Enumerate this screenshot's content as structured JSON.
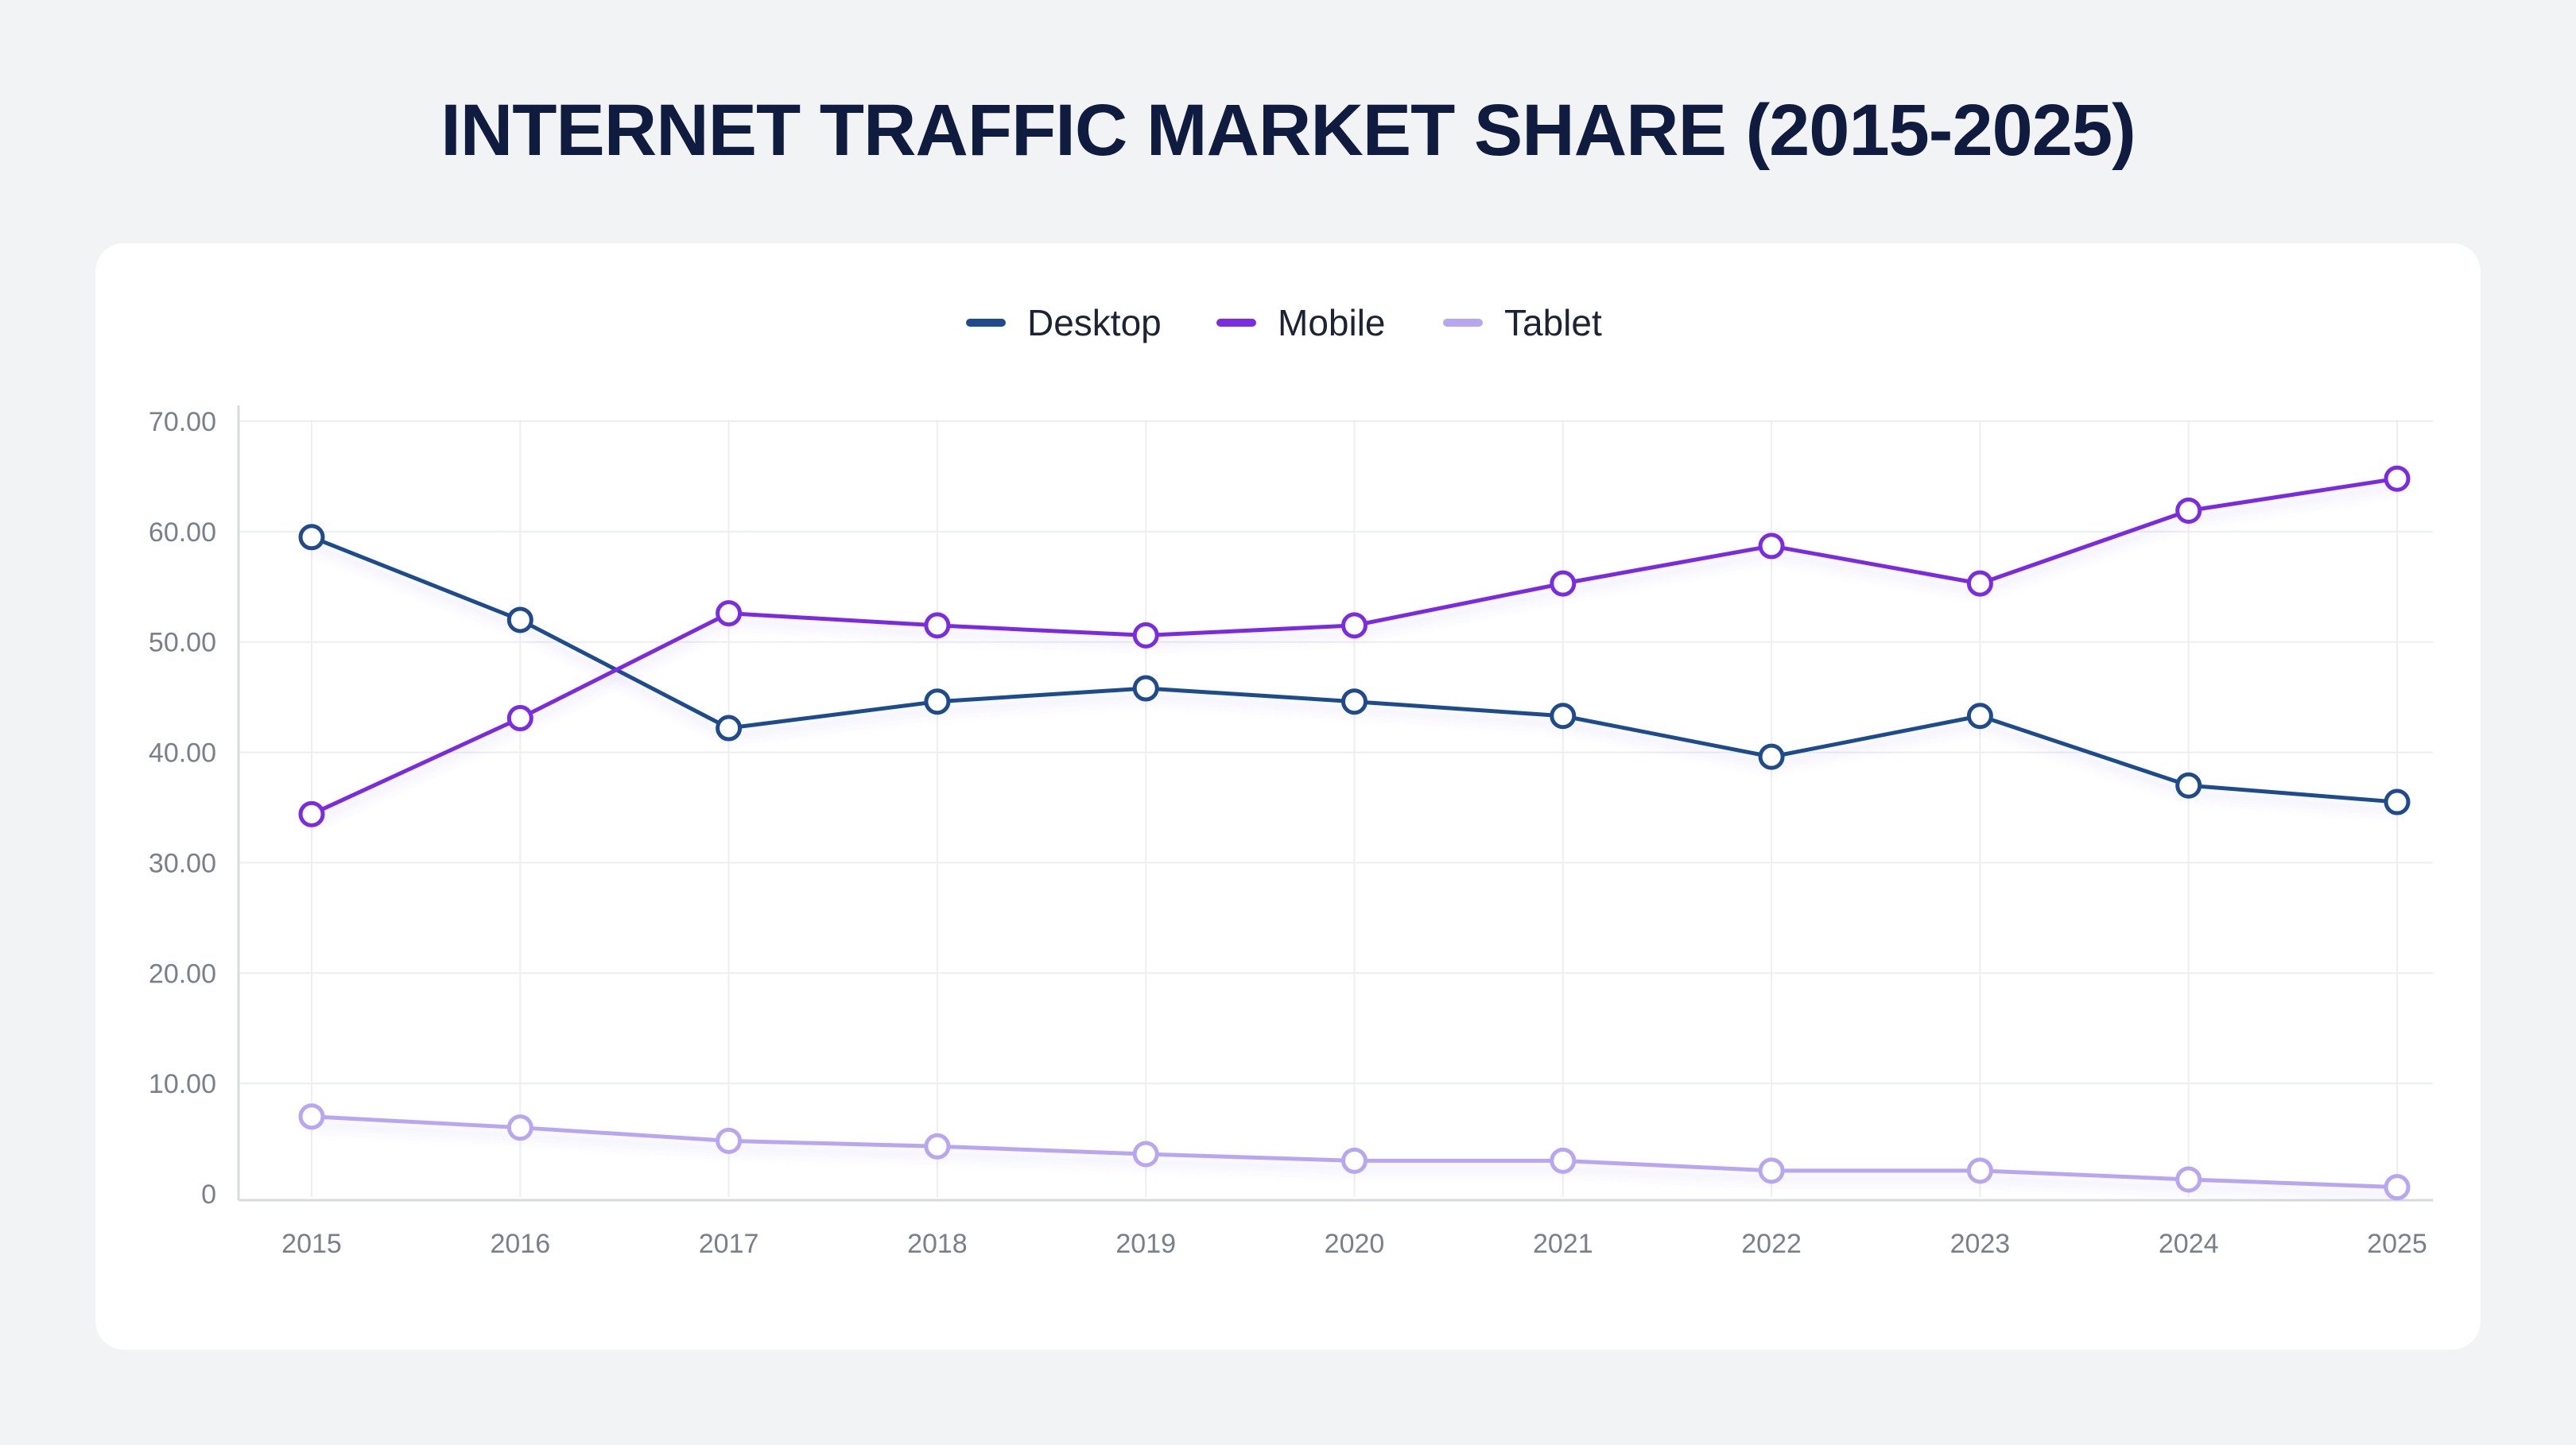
{
  "page": {
    "title": "INTERNET TRAFFIC MARKET SHARE (2015-2025)"
  },
  "chart_data": {
    "type": "line",
    "title": "INTERNET TRAFFIC MARKET SHARE (2015-2025)",
    "xlabel": "",
    "ylabel": "",
    "x": [
      "2015",
      "2016",
      "2017",
      "2018",
      "2019",
      "2020",
      "2021",
      "2022",
      "2023",
      "2024",
      "2025"
    ],
    "ylim": [
      0,
      70
    ],
    "yticks": [
      0,
      10,
      20,
      30,
      40,
      50,
      60,
      70
    ],
    "ytick_labels": [
      "0",
      "10.00",
      "20.00",
      "30.00",
      "40.00",
      "50.00",
      "60.00",
      "70.00"
    ],
    "grid": true,
    "legend_position": "top-center",
    "series": [
      {
        "name": "Desktop",
        "color": "#1f4b8e",
        "values": [
          59.5,
          52.0,
          42.2,
          44.6,
          45.8,
          44.6,
          43.3,
          39.6,
          43.3,
          37.0,
          35.5
        ]
      },
      {
        "name": "Mobile",
        "color": "#7b2be2",
        "values": [
          34.4,
          43.1,
          52.6,
          51.5,
          50.6,
          51.5,
          55.3,
          58.7,
          55.3,
          61.9,
          64.8
        ]
      },
      {
        "name": "Tablet",
        "color": "#b9a6f2",
        "values": [
          7.0,
          6.0,
          4.8,
          4.3,
          3.6,
          3.0,
          3.0,
          2.1,
          2.1,
          1.3,
          0.6
        ]
      }
    ]
  }
}
